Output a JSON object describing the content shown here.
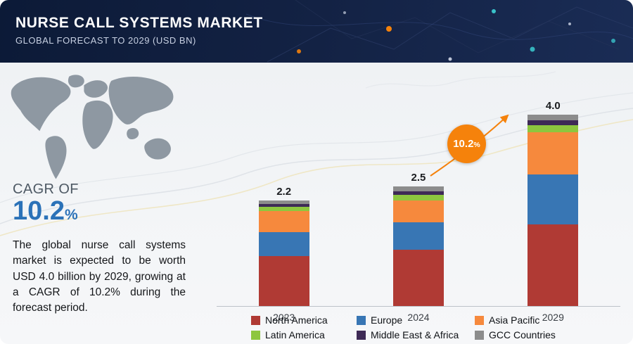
{
  "header": {
    "title": "NURSE CALL SYSTEMS MARKET",
    "subtitle": "GLOBAL FORECAST TO 2029 (USD BN)"
  },
  "cagr_panel": {
    "label": "CAGR OF",
    "value": "10.2",
    "percent_symbol": "%",
    "description": "The global nurse call systems market is expected to be worth USD 4.0 billion by 2029, growing at a CAGR of 10.2% during the forecast period."
  },
  "growth_badge": {
    "value": "10.2",
    "percent_symbol": "%"
  },
  "chart_data": {
    "type": "bar",
    "stacked": true,
    "title": "Nurse Call Systems Market, USD BN",
    "categories": [
      "2023",
      "2024",
      "2029"
    ],
    "totals": [
      2.2,
      2.5,
      4.0
    ],
    "unit": "USD BN",
    "legend_position": "bottom",
    "grid": false,
    "series": [
      {
        "name": "North America",
        "color": "#b03a34",
        "values": [
          1.05,
          1.17,
          1.7
        ]
      },
      {
        "name": "Europe",
        "color": "#3876b4",
        "values": [
          0.5,
          0.58,
          1.05
        ]
      },
      {
        "name": "Asia Pacific",
        "color": "#f6893d",
        "values": [
          0.43,
          0.45,
          0.88
        ]
      },
      {
        "name": "Latin America",
        "color": "#8dc63f",
        "values": [
          0.1,
          0.12,
          0.15
        ]
      },
      {
        "name": "Middle East & Africa",
        "color": "#3e2a56",
        "values": [
          0.06,
          0.08,
          0.1
        ]
      },
      {
        "name": "GCC Countries",
        "color": "#8c8c8c",
        "values": [
          0.06,
          0.1,
          0.12
        ]
      }
    ]
  }
}
